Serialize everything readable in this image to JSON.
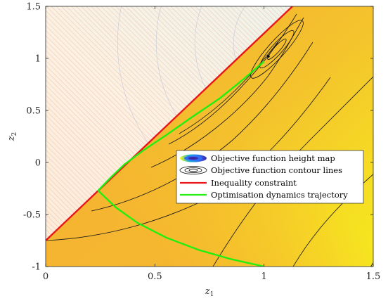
{
  "chart_data": {
    "type": "contour",
    "xlabel": "z",
    "xlabel_sub": "1",
    "ylabel": "z",
    "ylabel_sub": "2",
    "xlim": [
      0,
      1.5
    ],
    "ylim": [
      -1,
      1.5
    ],
    "xticks": [
      {
        "value": 0,
        "label": "0"
      },
      {
        "value": 0.5,
        "label": "0.5"
      },
      {
        "value": 1,
        "label": "1"
      },
      {
        "value": 1.5,
        "label": "1.5"
      }
    ],
    "yticks": [
      {
        "value": -1,
        "label": "-1"
      },
      {
        "value": -0.5,
        "label": "-0.5"
      },
      {
        "value": 0,
        "label": "0"
      },
      {
        "value": 0.5,
        "label": "0.5"
      },
      {
        "value": 1,
        "label": "1"
      },
      {
        "value": 1.5,
        "label": "1.5"
      }
    ],
    "inequality_constraint": {
      "points": [
        [
          0,
          -0.75
        ],
        [
          1.13,
          1.5
        ]
      ],
      "color": "#e8161a"
    },
    "trajectory": {
      "color": "#22ee11",
      "points": [
        [
          1.0,
          -1.0
        ],
        [
          0.85,
          -0.93
        ],
        [
          0.7,
          -0.84
        ],
        [
          0.55,
          -0.72
        ],
        [
          0.42,
          -0.58
        ],
        [
          0.32,
          -0.43
        ],
        [
          0.24,
          -0.27
        ],
        [
          0.3,
          -0.14
        ],
        [
          0.36,
          -0.02
        ],
        [
          0.45,
          0.12
        ],
        [
          0.55,
          0.26
        ],
        [
          0.68,
          0.45
        ],
        [
          0.8,
          0.62
        ],
        [
          0.9,
          0.79
        ],
        [
          1.0,
          0.97
        ]
      ]
    },
    "optimum": [
      1.02,
      1.02
    ],
    "legend": {
      "placement": "center-right",
      "entries": [
        {
          "label": "Objective function height map",
          "kind": "heatmap"
        },
        {
          "label": "Objective function contour lines",
          "kind": "contour"
        },
        {
          "label": "Inequality constraint",
          "kind": "line",
          "color": "#e8161a"
        },
        {
          "label": "Optimisation dynamics trajectory",
          "kind": "line",
          "color": "#22ee11"
        }
      ]
    },
    "colormap": [
      "#3e26a8",
      "#2f6ff4",
      "#14b2d6",
      "#35c790",
      "#98c655",
      "#eab92f",
      "#fbd52a",
      "#f9fb15"
    ]
  }
}
